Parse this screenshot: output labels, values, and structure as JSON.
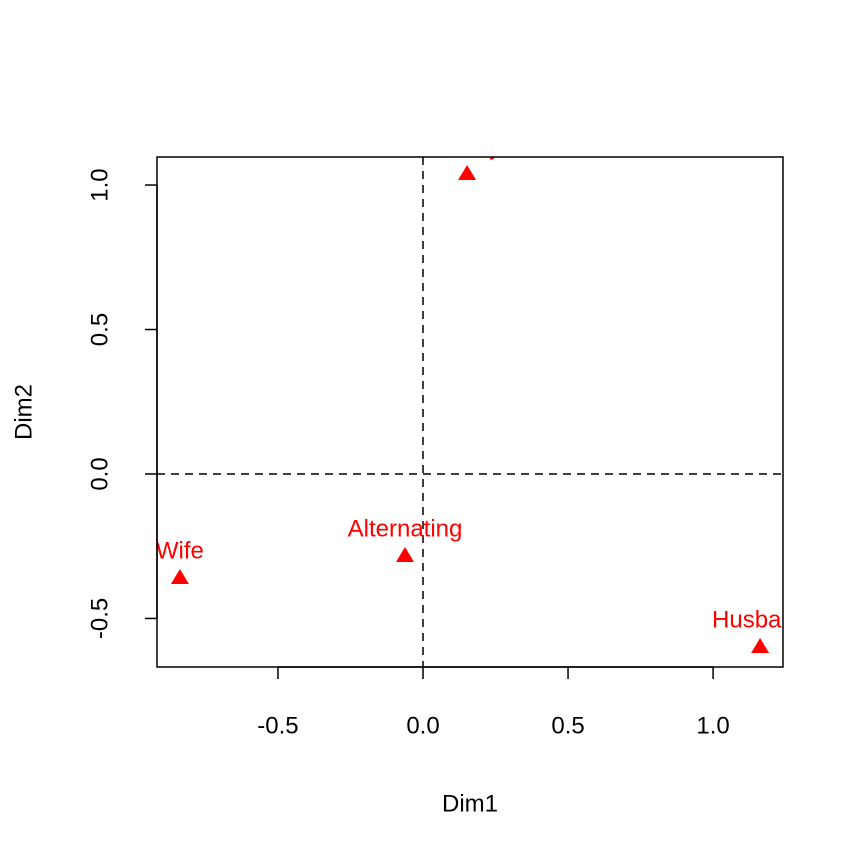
{
  "chart_data": {
    "type": "scatter",
    "x_label": "Dim1",
    "y_label": "Dim2",
    "labels": [
      "Wife",
      "Alternating",
      "Husband",
      "Jointly"
    ],
    "x": [
      -0.838,
      -0.062,
      1.162,
      0.152
    ],
    "values": [
      -0.36,
      -0.284,
      -0.599,
      1.038
    ],
    "color": "#ff0000",
    "marker": "triangle",
    "xlim": [
      -0.917,
      1.241
    ],
    "ylim": [
      -0.668,
      1.097
    ],
    "xticks": [
      -0.5,
      {
        "value": 0,
        "label": "0.0"
      },
      0.5,
      {
        "value": 1,
        "label": "1.0"
      }
    ],
    "yticks": [
      -0.5,
      {
        "value": 0,
        "label": "0.0"
      },
      0.5,
      {
        "value": 1,
        "label": "1.0"
      }
    ],
    "hline": 0,
    "vline": 0
  }
}
